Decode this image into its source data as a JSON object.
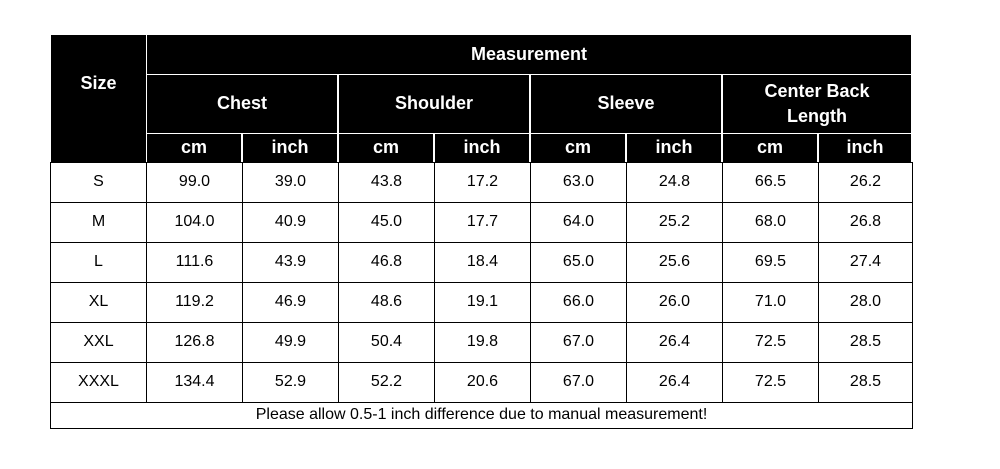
{
  "header": {
    "size": "Size",
    "measurement": "Measurement",
    "groups": [
      "Chest",
      "Shoulder",
      "Sleeve",
      "Center Back Length"
    ],
    "units": [
      "cm",
      "inch",
      "cm",
      "inch",
      "cm",
      "inch",
      "cm",
      "inch"
    ]
  },
  "rows": [
    [
      "S",
      "99.0",
      "39.0",
      "43.8",
      "17.2",
      "63.0",
      "24.8",
      "66.5",
      "26.2"
    ],
    [
      "M",
      "104.0",
      "40.9",
      "45.0",
      "17.7",
      "64.0",
      "25.2",
      "68.0",
      "26.8"
    ],
    [
      "L",
      "111.6",
      "43.9",
      "46.8",
      "18.4",
      "65.0",
      "25.6",
      "69.5",
      "27.4"
    ],
    [
      "XL",
      "119.2",
      "46.9",
      "48.6",
      "19.1",
      "66.0",
      "26.0",
      "71.0",
      "28.0"
    ],
    [
      "XXL",
      "126.8",
      "49.9",
      "50.4",
      "19.8",
      "67.0",
      "26.4",
      "72.5",
      "28.5"
    ],
    [
      "XXXL",
      "134.4",
      "52.9",
      "52.2",
      "20.6",
      "67.0",
      "26.4",
      "72.5",
      "28.5"
    ]
  ],
  "note": "Please allow 0.5-1 inch difference due to manual measurement!"
}
